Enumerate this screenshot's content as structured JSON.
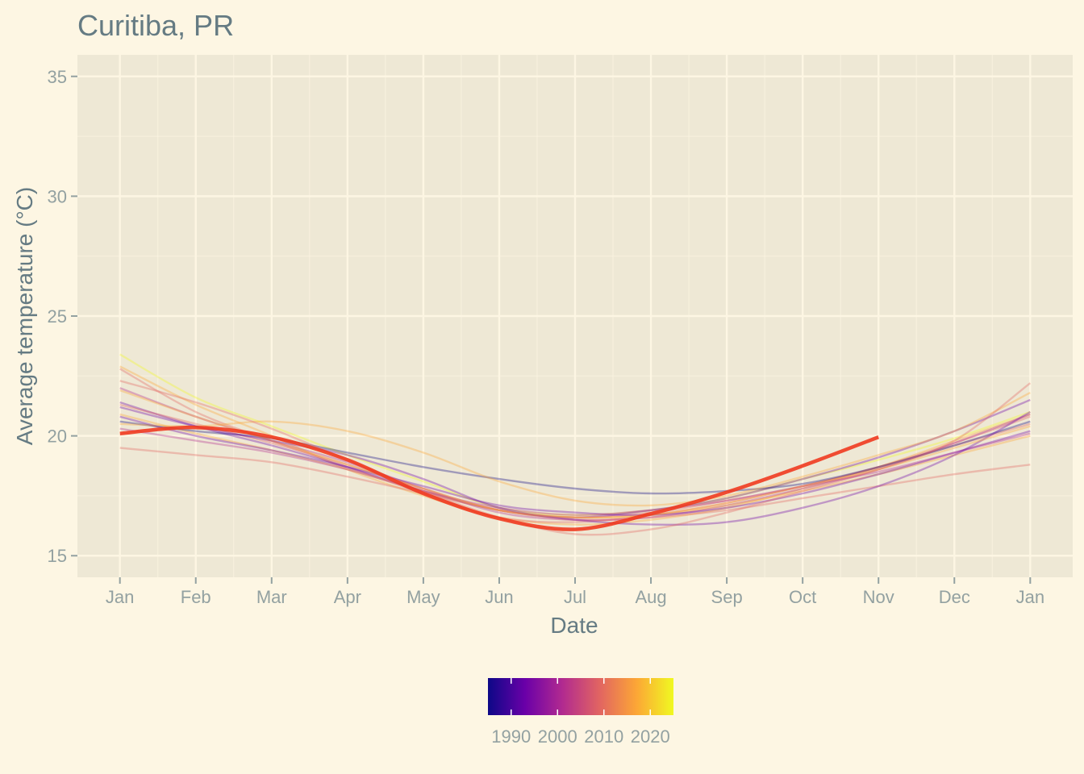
{
  "chart_data": {
    "type": "line",
    "title": "Curitiba, PR",
    "xlabel": "Date",
    "ylabel": "Average temperature (°C)",
    "x_ticks": [
      "Jan",
      "Feb",
      "Mar",
      "Apr",
      "May",
      "Jun",
      "Jul",
      "Aug",
      "Sep",
      "Oct",
      "Nov",
      "Dec",
      "Jan"
    ],
    "y_ticks": [
      "15",
      "20",
      "25",
      "30",
      "35"
    ],
    "ylim": [
      14.1,
      35.9
    ],
    "xlim": [
      -0.56,
      12.56
    ],
    "grid": true,
    "legend": {
      "type": "colorbar",
      "position": "bottom",
      "ticks": [
        "1990",
        "2000",
        "2010",
        "2020"
      ],
      "range": [
        1985,
        2025
      ],
      "colors": [
        "#0d0887",
        "#6a00a8",
        "#b12a90",
        "#e16462",
        "#fca636",
        "#f0f921"
      ]
    },
    "background_series": {
      "color_by": "year",
      "opacity": 0.35,
      "curves": [
        {
          "color": "#f0f921",
          "values": [
            23.4,
            21.6,
            20.4,
            19.2,
            18.1,
            17.0,
            16.7,
            16.9,
            17.4,
            18.2,
            19.0,
            19.9,
            21.0
          ]
        },
        {
          "color": "#fca636",
          "values": [
            22.9,
            21.3,
            20.0,
            18.6,
            17.5,
            16.6,
            16.3,
            16.5,
            17.0,
            17.8,
            18.7,
            19.8,
            20.9
          ]
        },
        {
          "color": "#e16462",
          "values": [
            22.8,
            21.0,
            19.8,
            18.7,
            17.6,
            16.6,
            16.4,
            16.7,
            17.2,
            17.9,
            18.7,
            19.7,
            20.8
          ]
        },
        {
          "color": "#b12a90",
          "values": [
            22.0,
            20.8,
            19.8,
            18.9,
            17.8,
            16.8,
            16.5,
            16.6,
            17.1,
            17.8,
            18.6,
            19.7,
            20.9
          ]
        },
        {
          "color": "#6a00a8",
          "values": [
            21.4,
            20.4,
            19.6,
            18.7,
            17.7,
            16.9,
            16.6,
            16.9,
            17.4,
            18.2,
            19.1,
            20.2,
            21.5
          ]
        },
        {
          "color": "#e16462",
          "values": [
            21.3,
            20.5,
            19.7,
            18.8,
            17.8,
            16.9,
            16.6,
            16.8,
            17.3,
            17.9,
            18.7,
            19.6,
            20.5
          ]
        },
        {
          "color": "#fca636",
          "values": [
            20.9,
            20.1,
            19.4,
            18.6,
            17.7,
            16.9,
            16.6,
            16.7,
            17.1,
            17.7,
            18.4,
            19.2,
            20.0
          ]
        },
        {
          "color": "#6a00a8",
          "values": [
            20.8,
            20.0,
            19.4,
            18.7,
            17.9,
            17.1,
            16.8,
            16.7,
            17.0,
            17.6,
            18.4,
            19.3,
            20.2
          ]
        },
        {
          "color": "#0d0887",
          "values": [
            20.6,
            20.2,
            19.9,
            19.3,
            18.7,
            18.2,
            17.8,
            17.6,
            17.7,
            18.0,
            18.7,
            19.6,
            20.6
          ]
        },
        {
          "color": "#b12a90",
          "values": [
            20.3,
            19.8,
            19.3,
            18.6,
            17.7,
            17.0,
            16.7,
            16.9,
            17.3,
            17.9,
            18.5,
            19.3,
            20.1
          ]
        },
        {
          "color": "#e16462",
          "values": [
            19.5,
            19.2,
            18.9,
            18.3,
            17.6,
            16.9,
            16.5,
            16.6,
            16.9,
            17.4,
            17.9,
            18.4,
            18.8
          ]
        },
        {
          "color": "#fca636",
          "values": [
            20.5,
            20.4,
            20.6,
            20.2,
            19.3,
            18.1,
            17.3,
            17.1,
            17.5,
            18.3,
            19.2,
            20.2,
            21.8
          ]
        },
        {
          "color": "#6a00a8",
          "values": [
            21.2,
            20.4,
            19.8,
            19.2,
            18.2,
            17.0,
            16.5,
            16.3,
            16.4,
            17.0,
            17.9,
            19.2,
            21.0
          ]
        },
        {
          "color": "#e16462",
          "values": [
            22.3,
            21.4,
            20.3,
            19.0,
            17.7,
            16.6,
            15.9,
            16.1,
            16.8,
            17.7,
            18.6,
            19.8,
            22.2
          ]
        },
        {
          "color": "#fca636",
          "values": [
            21.9,
            20.8,
            19.8,
            18.8,
            17.8,
            16.9,
            16.6,
            16.7,
            17.2,
            17.9,
            18.6,
            19.5,
            20.4
          ]
        }
      ]
    },
    "series": [
      {
        "name": "",
        "color": "#f03b20",
        "emphasis": true,
        "x_months": [
          0,
          1,
          2,
          3,
          4,
          5,
          6,
          7,
          8,
          9,
          10
        ],
        "values": [
          20.1,
          20.35,
          19.95,
          19.0,
          17.6,
          16.55,
          16.1,
          16.75,
          17.65,
          18.75,
          19.95
        ]
      }
    ]
  }
}
